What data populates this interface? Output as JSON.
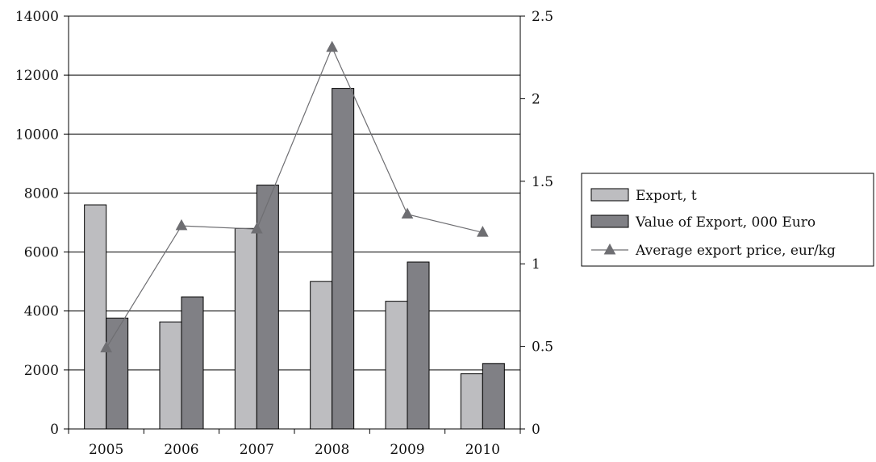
{
  "chart_data": {
    "type": "bar",
    "categories": [
      "2005",
      "2006",
      "2007",
      "2008",
      "2009",
      "2010"
    ],
    "series": [
      {
        "name": "Export, t",
        "type": "bar",
        "axis": "left",
        "color": "#bdbdc0",
        "values": [
          7600,
          3630,
          6800,
          5000,
          4330,
          1870
        ]
      },
      {
        "name": "Value of Export, 000 Euro",
        "type": "bar",
        "axis": "left",
        "color": "#808085",
        "values": [
          3760,
          4480,
          8270,
          11550,
          5660,
          2220
        ]
      },
      {
        "name": "Average export price, eur/kg",
        "type": "line",
        "axis": "right",
        "color": "#6e6e72",
        "marker": "triangle",
        "values": [
          0.49,
          1.23,
          1.21,
          2.31,
          1.3,
          1.19
        ]
      }
    ],
    "y_left": {
      "ylim": [
        0,
        14000
      ],
      "ticks": [
        "0",
        "2000",
        "4000",
        "6000",
        "8000",
        "10000",
        "12000",
        "14000"
      ]
    },
    "y_right": {
      "ylim": [
        0,
        2.5
      ],
      "ticks": [
        "0",
        "0.5",
        "1",
        "1.5",
        "2",
        "2.5"
      ]
    },
    "grid": "horizontal",
    "legend_position": "right"
  }
}
